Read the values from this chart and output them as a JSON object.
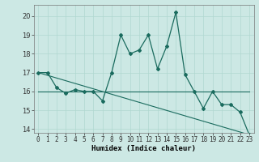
{
  "xlabel": "Humidex (Indice chaleur)",
  "bg_color": "#cce8e4",
  "line_color": "#1a6b5e",
  "grid_color": "#b0d8d0",
  "xlim": [
    -0.5,
    23.5
  ],
  "ylim": [
    13.8,
    20.6
  ],
  "yticks": [
    14,
    15,
    16,
    17,
    18,
    19,
    20
  ],
  "xticks": [
    0,
    1,
    2,
    3,
    4,
    5,
    6,
    7,
    8,
    9,
    10,
    11,
    12,
    13,
    14,
    15,
    16,
    17,
    18,
    19,
    20,
    21,
    22,
    23
  ],
  "line1_x": [
    0,
    1,
    2,
    3,
    4,
    5,
    6,
    7,
    8,
    9,
    10,
    11,
    12,
    13,
    14,
    15,
    16,
    17,
    18,
    19,
    20,
    21,
    22,
    23
  ],
  "line1_y": [
    17.0,
    17.0,
    16.2,
    15.9,
    16.1,
    16.0,
    16.0,
    15.5,
    17.0,
    19.0,
    18.0,
    18.2,
    19.0,
    17.2,
    18.4,
    20.2,
    16.9,
    16.0,
    15.1,
    16.0,
    15.3,
    15.3,
    14.9,
    13.7
  ],
  "line2_x": [
    0,
    23
  ],
  "line2_y": [
    16.0,
    16.0
  ],
  "line3_x": [
    0,
    23
  ],
  "line3_y": [
    17.0,
    13.7
  ],
  "tick_fontsize": 5.5,
  "xlabel_fontsize": 6.5
}
